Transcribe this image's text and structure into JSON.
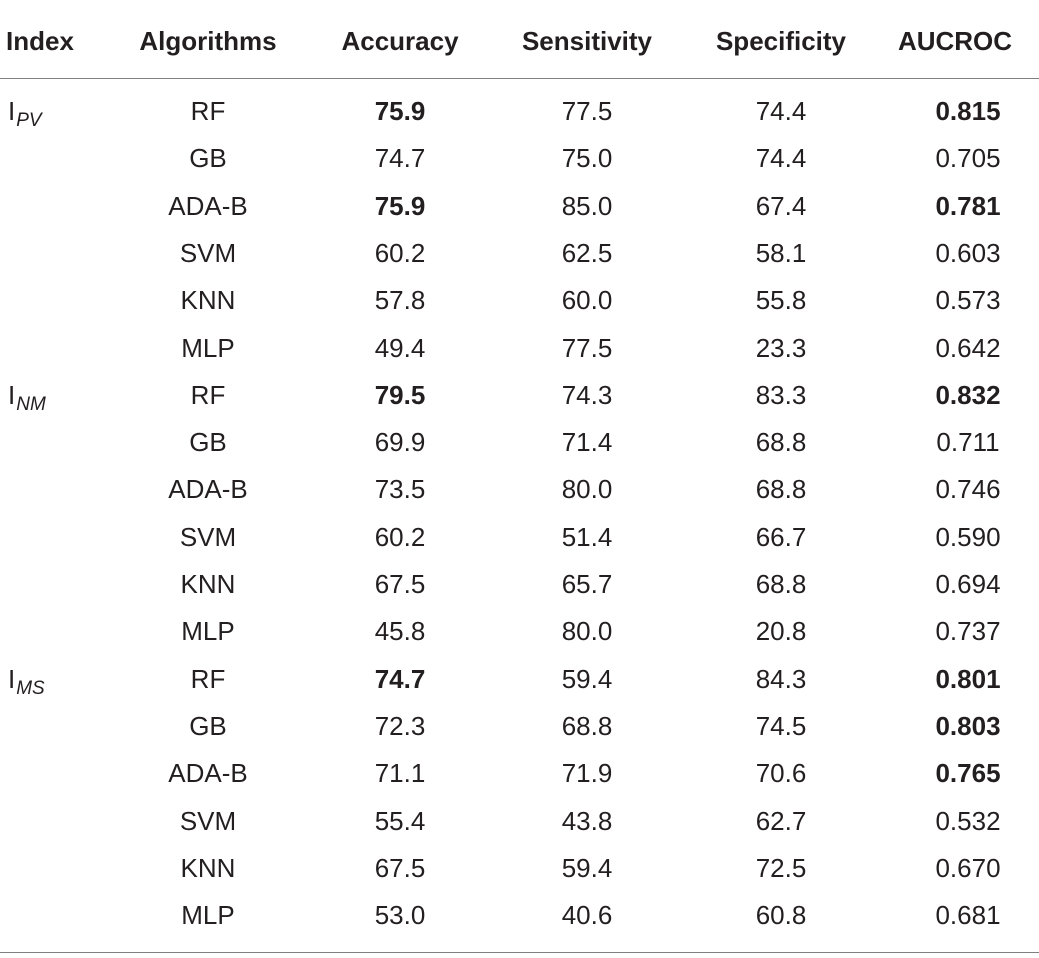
{
  "table": {
    "headers": [
      "Index",
      "Algorithms",
      "Accuracy",
      "Sensitivity",
      "Specificity",
      "AUCROC"
    ],
    "groups": [
      {
        "index_main": "I",
        "index_sub": "PV",
        "rows": [
          {
            "algorithm": "RF",
            "accuracy": "75.9",
            "sensitivity": "77.5",
            "specificity": "74.4",
            "aucroc": "0.815",
            "accuracy_bold": true,
            "aucroc_bold": true
          },
          {
            "algorithm": "GB",
            "accuracy": "74.7",
            "sensitivity": "75.0",
            "specificity": "74.4",
            "aucroc": "0.705",
            "accuracy_bold": false,
            "aucroc_bold": false
          },
          {
            "algorithm": "ADA-B",
            "accuracy": "75.9",
            "sensitivity": "85.0",
            "specificity": "67.4",
            "aucroc": "0.781",
            "accuracy_bold": true,
            "aucroc_bold": true
          },
          {
            "algorithm": "SVM",
            "accuracy": "60.2",
            "sensitivity": "62.5",
            "specificity": "58.1",
            "aucroc": "0.603",
            "accuracy_bold": false,
            "aucroc_bold": false
          },
          {
            "algorithm": "KNN",
            "accuracy": "57.8",
            "sensitivity": "60.0",
            "specificity": "55.8",
            "aucroc": "0.573",
            "accuracy_bold": false,
            "aucroc_bold": false
          },
          {
            "algorithm": "MLP",
            "accuracy": "49.4",
            "sensitivity": "77.5",
            "specificity": "23.3",
            "aucroc": "0.642",
            "accuracy_bold": false,
            "aucroc_bold": false
          }
        ]
      },
      {
        "index_main": "I",
        "index_sub": "NM",
        "rows": [
          {
            "algorithm": "RF",
            "accuracy": "79.5",
            "sensitivity": "74.3",
            "specificity": "83.3",
            "aucroc": "0.832",
            "accuracy_bold": true,
            "aucroc_bold": true
          },
          {
            "algorithm": "GB",
            "accuracy": "69.9",
            "sensitivity": "71.4",
            "specificity": "68.8",
            "aucroc": "0.711",
            "accuracy_bold": false,
            "aucroc_bold": false
          },
          {
            "algorithm": "ADA-B",
            "accuracy": "73.5",
            "sensitivity": "80.0",
            "specificity": "68.8",
            "aucroc": "0.746",
            "accuracy_bold": false,
            "aucroc_bold": false
          },
          {
            "algorithm": "SVM",
            "accuracy": "60.2",
            "sensitivity": "51.4",
            "specificity": "66.7",
            "aucroc": "0.590",
            "accuracy_bold": false,
            "aucroc_bold": false
          },
          {
            "algorithm": "KNN",
            "accuracy": "67.5",
            "sensitivity": "65.7",
            "specificity": "68.8",
            "aucroc": "0.694",
            "accuracy_bold": false,
            "aucroc_bold": false
          },
          {
            "algorithm": "MLP",
            "accuracy": "45.8",
            "sensitivity": "80.0",
            "specificity": "20.8",
            "aucroc": "0.737",
            "accuracy_bold": false,
            "aucroc_bold": false
          }
        ]
      },
      {
        "index_main": "I",
        "index_sub": "MS",
        "rows": [
          {
            "algorithm": "RF",
            "accuracy": "74.7",
            "sensitivity": "59.4",
            "specificity": "84.3",
            "aucroc": "0.801",
            "accuracy_bold": true,
            "aucroc_bold": true
          },
          {
            "algorithm": "GB",
            "accuracy": "72.3",
            "sensitivity": "68.8",
            "specificity": "74.5",
            "aucroc": "0.803",
            "accuracy_bold": false,
            "aucroc_bold": true
          },
          {
            "algorithm": "ADA-B",
            "accuracy": "71.1",
            "sensitivity": "71.9",
            "specificity": "70.6",
            "aucroc": "0.765",
            "accuracy_bold": false,
            "aucroc_bold": true
          },
          {
            "algorithm": "SVM",
            "accuracy": "55.4",
            "sensitivity": "43.8",
            "specificity": "62.7",
            "aucroc": "0.532",
            "accuracy_bold": false,
            "aucroc_bold": false
          },
          {
            "algorithm": "KNN",
            "accuracy": "67.5",
            "sensitivity": "59.4",
            "specificity": "72.5",
            "aucroc": "0.670",
            "accuracy_bold": false,
            "aucroc_bold": false
          },
          {
            "algorithm": "MLP",
            "accuracy": "53.0",
            "sensitivity": "40.6",
            "specificity": "60.8",
            "aucroc": "0.681",
            "accuracy_bold": false,
            "aucroc_bold": false
          }
        ]
      }
    ]
  }
}
